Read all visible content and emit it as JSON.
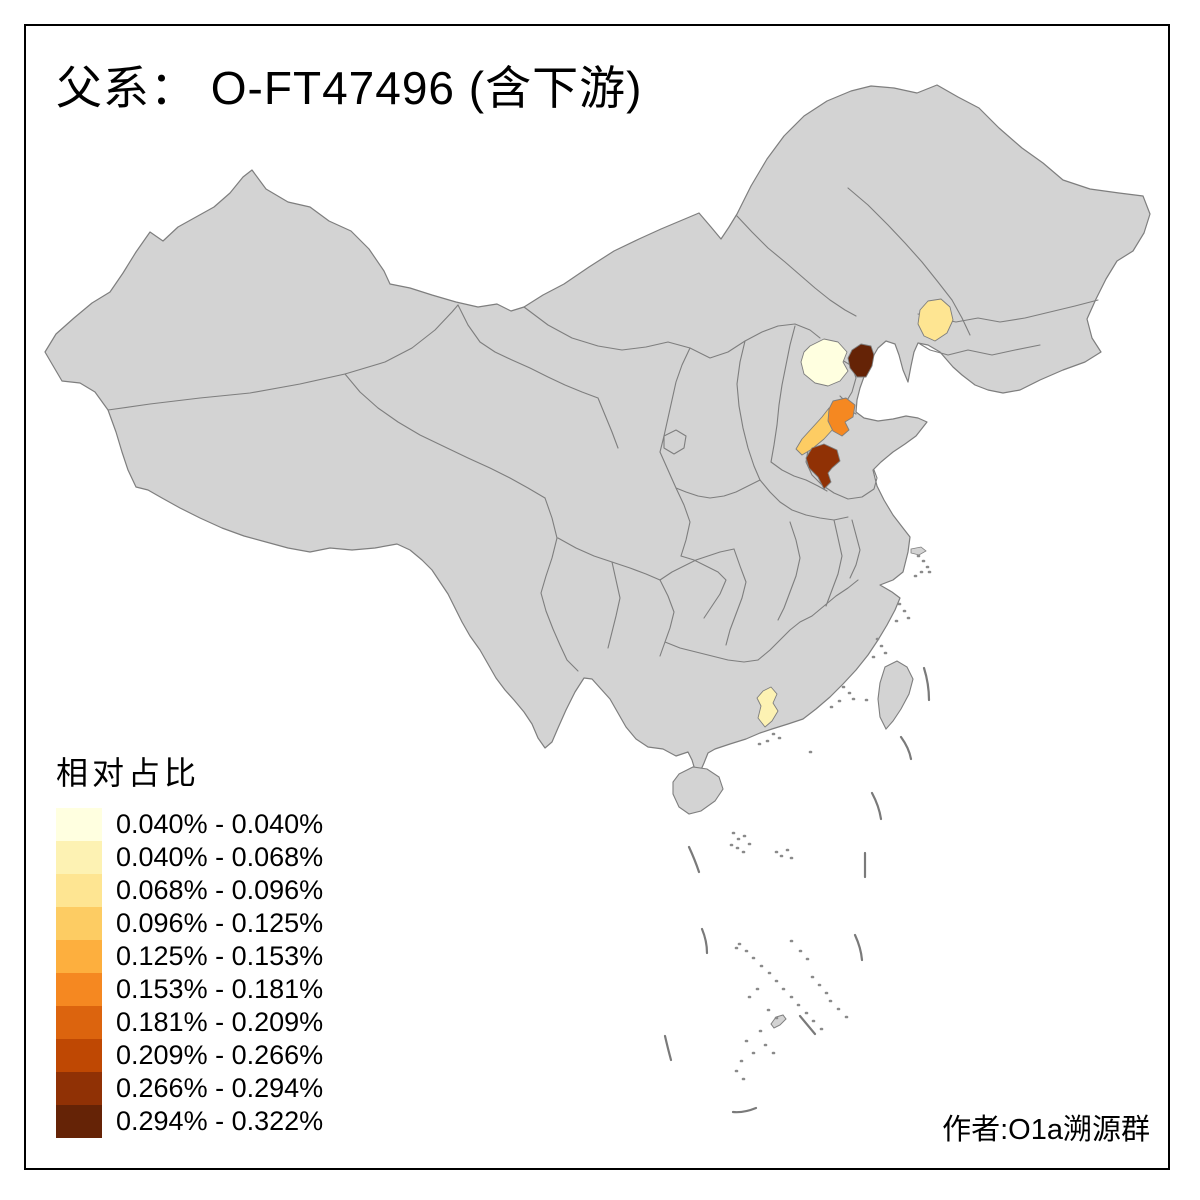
{
  "title": "父系： O-FT47496 (含下游)",
  "legend": {
    "title": "相对占比",
    "classes": [
      {
        "label": "0.040% - 0.040%",
        "color": "#FFFFE0"
      },
      {
        "label": "0.040% - 0.068%",
        "color": "#FDF2B3"
      },
      {
        "label": "0.068% - 0.096%",
        "color": "#FEE592"
      },
      {
        "label": "0.096% - 0.125%",
        "color": "#FDCC63"
      },
      {
        "label": "0.125% - 0.153%",
        "color": "#FDAF3E"
      },
      {
        "label": "0.153% - 0.181%",
        "color": "#F58821"
      },
      {
        "label": "0.181% - 0.209%",
        "color": "#DC640E"
      },
      {
        "label": "0.209% - 0.266%",
        "color": "#BF4803"
      },
      {
        "label": "0.266% - 0.294%",
        "color": "#903105"
      },
      {
        "label": "0.294% - 0.322%",
        "color": "#652306"
      }
    ]
  },
  "attribution": "作者:O1a溯源群",
  "map": {
    "base_fill": "#D3D3D3",
    "border_color": "#7E7E7E",
    "background": "#FFFFFF",
    "frame_color": "#000000",
    "regions": [
      {
        "id": "region-1",
        "range": "0.040% - 0.040%",
        "color": "#FFFFE0"
      },
      {
        "id": "region-2",
        "range": "0.068% - 0.096%",
        "color": "#FEE592"
      },
      {
        "id": "region-3",
        "range": "0.294% - 0.322%",
        "color": "#652306"
      },
      {
        "id": "region-4",
        "range": "0.096% - 0.125%",
        "color": "#FDCC63"
      },
      {
        "id": "region-5",
        "range": "0.153% - 0.181%",
        "color": "#F58821"
      },
      {
        "id": "region-6",
        "range": "0.266% - 0.294%",
        "color": "#903105"
      },
      {
        "id": "region-7",
        "range": "0.040% - 0.068%",
        "color": "#FDF2B3"
      }
    ]
  }
}
